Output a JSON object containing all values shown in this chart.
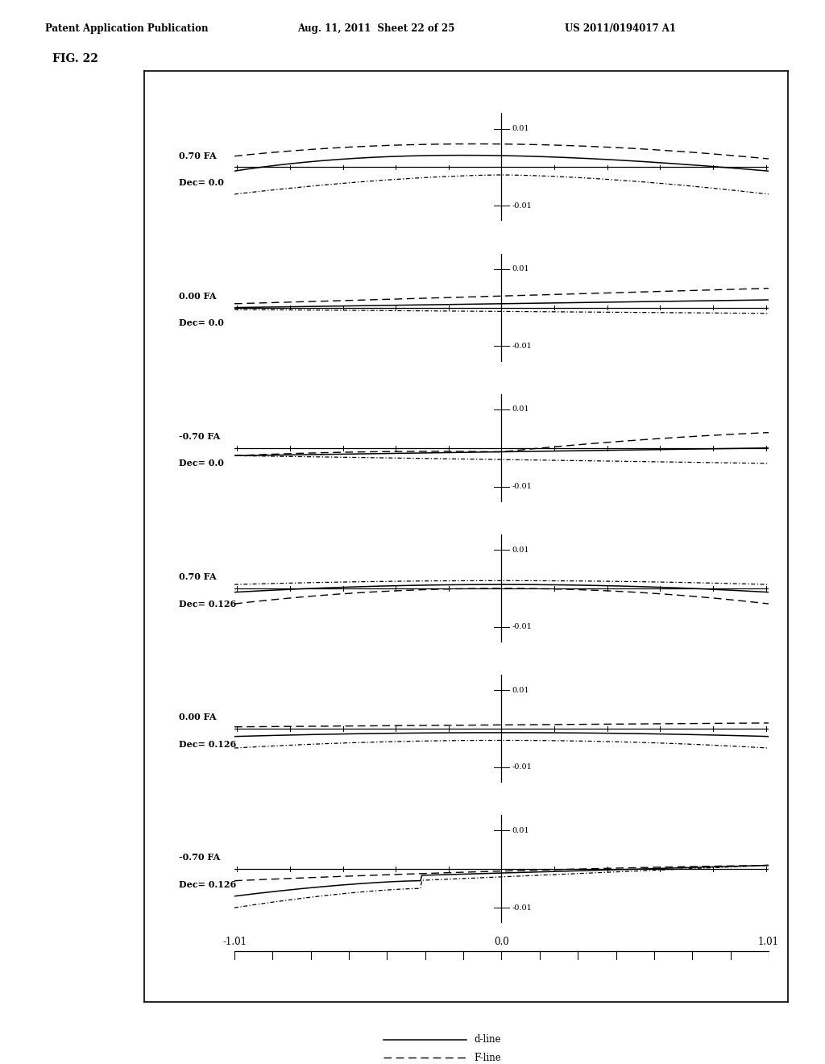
{
  "header_left": "Patent Application Publication",
  "header_mid": "Aug. 11, 2011  Sheet 22 of 25",
  "header_right": "US 2011/0194017 A1",
  "fig_label": "FIG. 22",
  "subplot_labels": [
    {
      "fa": "0.70 FA",
      "dec": "Dec= 0.0"
    },
    {
      "fa": "0.00 FA",
      "dec": "Dec= 0.0"
    },
    {
      "fa": "-0.70 FA",
      "dec": "Dec= 0.0"
    },
    {
      "fa": "0.70 FA",
      "dec": "Dec= 0.126"
    },
    {
      "fa": "0.00 FA",
      "dec": "Dec= 0.126"
    },
    {
      "fa": "-0.70 FA",
      "dec": "Dec= 0.126"
    }
  ],
  "xlim": [
    -1.01,
    1.01
  ],
  "ylim": [
    -0.01,
    0.01
  ],
  "bg_color": "#ffffff"
}
